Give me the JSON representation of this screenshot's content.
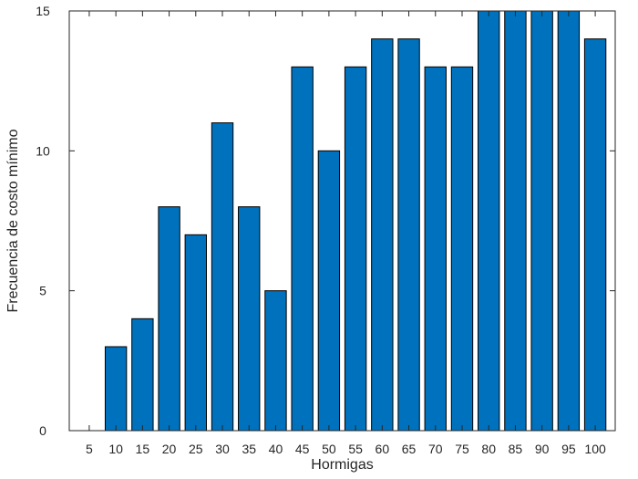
{
  "chart_data": {
    "type": "bar",
    "title": "",
    "xlabel": "Hormigas",
    "ylabel": "Frecuencia de costo mínimo",
    "categories": [
      "5",
      "10",
      "15",
      "20",
      "25",
      "30",
      "35",
      "40",
      "45",
      "50",
      "55",
      "60",
      "65",
      "70",
      "75",
      "80",
      "85",
      "90",
      "95",
      "100"
    ],
    "values": [
      0,
      3,
      4,
      8,
      7,
      11,
      8,
      5,
      13,
      10,
      13,
      14,
      14,
      13,
      13,
      15,
      15,
      15,
      15,
      14
    ],
    "ylim": [
      0,
      15
    ],
    "yticks": [
      0,
      5,
      10,
      15
    ],
    "grid": false,
    "bar_color": "#0072BD",
    "edge_color": "#000000"
  }
}
